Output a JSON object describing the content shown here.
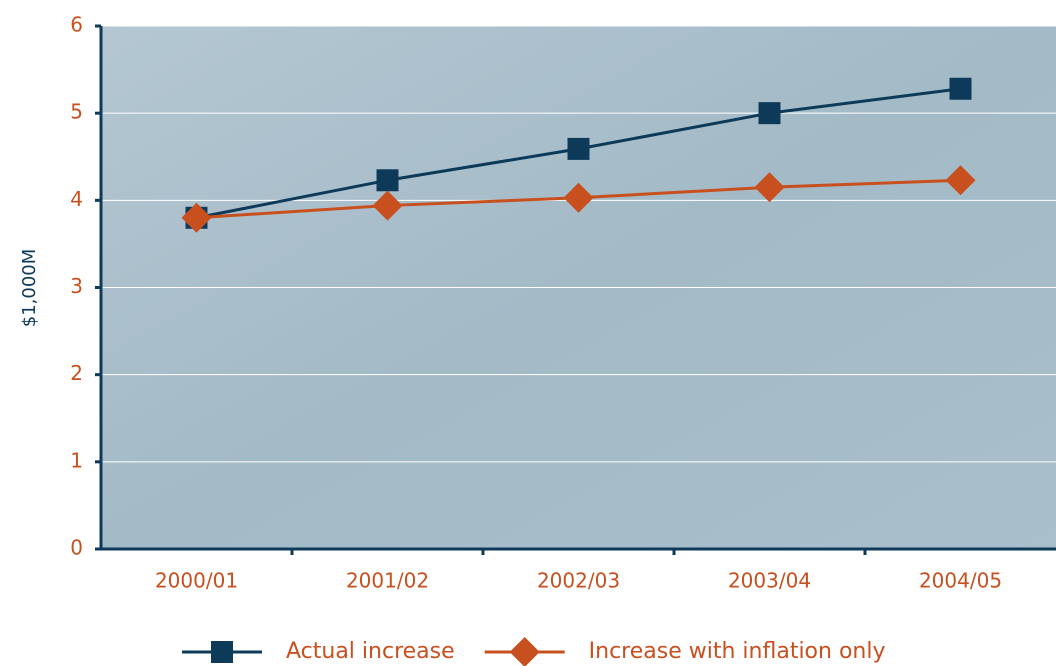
{
  "chart_data": {
    "type": "line",
    "y_label": "$1,000M",
    "categories": [
      "2000/01",
      "2001/02",
      "2002/03",
      "2003/04",
      "2004/05"
    ],
    "series": [
      {
        "name": "Actual increase",
        "color": "#0e3a5a",
        "marker": "square",
        "values": [
          3.8,
          4.23,
          4.59,
          5.0,
          5.28
        ]
      },
      {
        "name": "Increase with inflation only",
        "color": "#c8501e",
        "marker": "diamond",
        "values": [
          3.8,
          3.94,
          4.03,
          4.15,
          4.23
        ]
      }
    ],
    "ylim": [
      0,
      6
    ],
    "yticks": [
      0,
      1,
      2,
      3,
      4,
      5,
      6
    ],
    "grid": true,
    "legend": "bottom"
  }
}
